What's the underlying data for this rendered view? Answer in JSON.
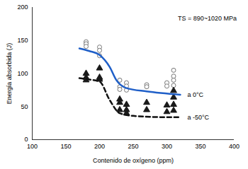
{
  "chart_data": {
    "type": "scatter",
    "x_label": "Contenido de oxígeno (ppm)",
    "y_label": "Energía absorbida (J)",
    "xlim": [
      100,
      400
    ],
    "xticks": [
      100,
      150,
      200,
      250,
      300,
      350,
      400
    ],
    "ylim": [
      0,
      200
    ],
    "yticks": [
      0,
      50,
      100,
      150,
      200
    ],
    "annotations": [
      {
        "text": "TS = 890~1020 MPa"
      }
    ],
    "series": [
      {
        "name": "a 0°C",
        "type": "scatter",
        "marker": "circle",
        "color": "#ffffff",
        "x": [
          180,
          180,
          180,
          200,
          200,
          200,
          230,
          230,
          230,
          240,
          240,
          240,
          270,
          270,
          300,
          300,
          310,
          310,
          310,
          310
        ],
        "values": [
          148,
          145,
          141,
          140,
          135,
          127,
          90,
          80,
          76,
          86,
          81,
          75,
          83,
          80,
          86,
          81,
          105,
          96,
          90,
          82
        ]
      },
      {
        "name": "a -50°C",
        "type": "scatter",
        "marker": "triangle",
        "color": "#1a1a1a",
        "x": [
          180,
          180,
          180,
          200,
          200,
          200,
          230,
          230,
          230,
          240,
          240,
          240,
          270,
          270,
          300,
          300,
          310,
          310,
          310,
          310
        ],
        "values": [
          100,
          94,
          90,
          108,
          94,
          91,
          61,
          56,
          45,
          53,
          45,
          40,
          56,
          45,
          52,
          42,
          74,
          64,
          53,
          44
        ]
      },
      {
        "name": "a 0°C",
        "type": "line",
        "line_style": "solid",
        "color": "#1f5fc8",
        "x": [
          170,
          185,
          200,
          215,
          225,
          240,
          270,
          320
        ],
        "values": [
          138,
          134,
          128,
          110,
          90,
          78,
          73,
          68
        ]
      },
      {
        "name": "a -50°C",
        "type": "line",
        "line_style": "dashed",
        "color": "#111111",
        "x": [
          170,
          185,
          200,
          215,
          230,
          250,
          300,
          320
        ],
        "values": [
          93,
          91,
          88,
          60,
          40,
          36,
          34,
          34
        ]
      }
    ]
  }
}
